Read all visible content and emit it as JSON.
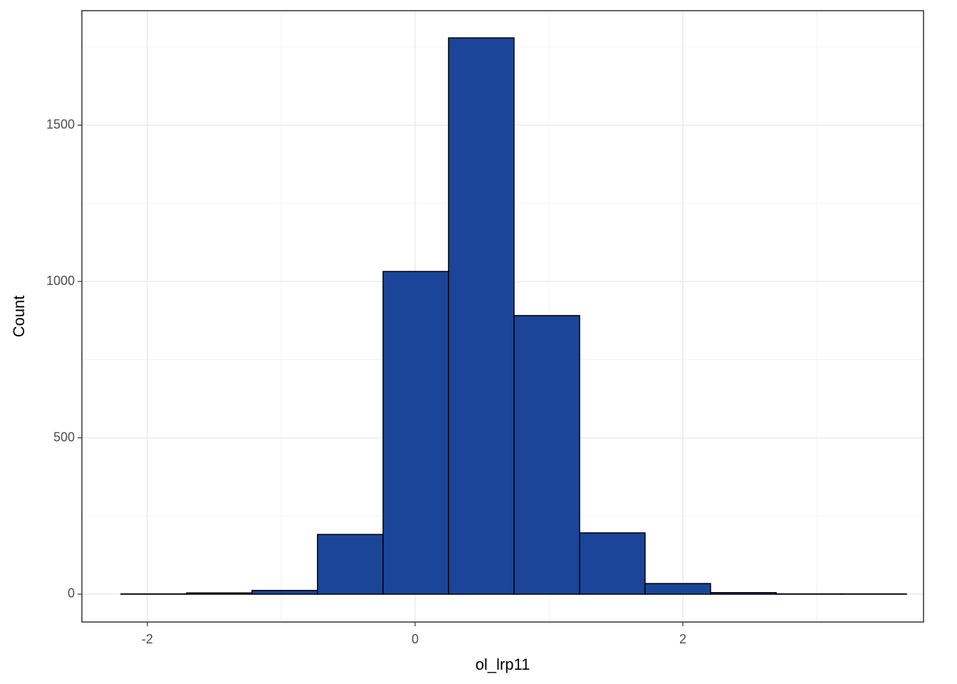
{
  "chart_data": {
    "type": "histogram",
    "x_label": "ol_lrp11",
    "y_label": "Count",
    "bins": [
      -2.197,
      -1.707,
      -1.218,
      -0.729,
      -0.239,
      0.25,
      0.739,
      1.229,
      1.718,
      2.207,
      2.697,
      3.186,
      3.67
    ],
    "values": [
      1,
      4,
      12,
      191,
      1032,
      1779,
      891,
      196,
      34,
      5,
      1,
      1
    ],
    "color": "#1a4599",
    "xlim": [
      -2.489,
      3.798
    ],
    "xticks": [
      -2,
      0,
      2
    ],
    "xminor": [
      -1,
      1,
      3
    ],
    "ylim": [
      -89,
      1866
    ],
    "yticks": [
      0,
      500,
      1000,
      1500
    ],
    "yminor": [
      250,
      750,
      1250,
      1750
    ],
    "grid": true
  }
}
